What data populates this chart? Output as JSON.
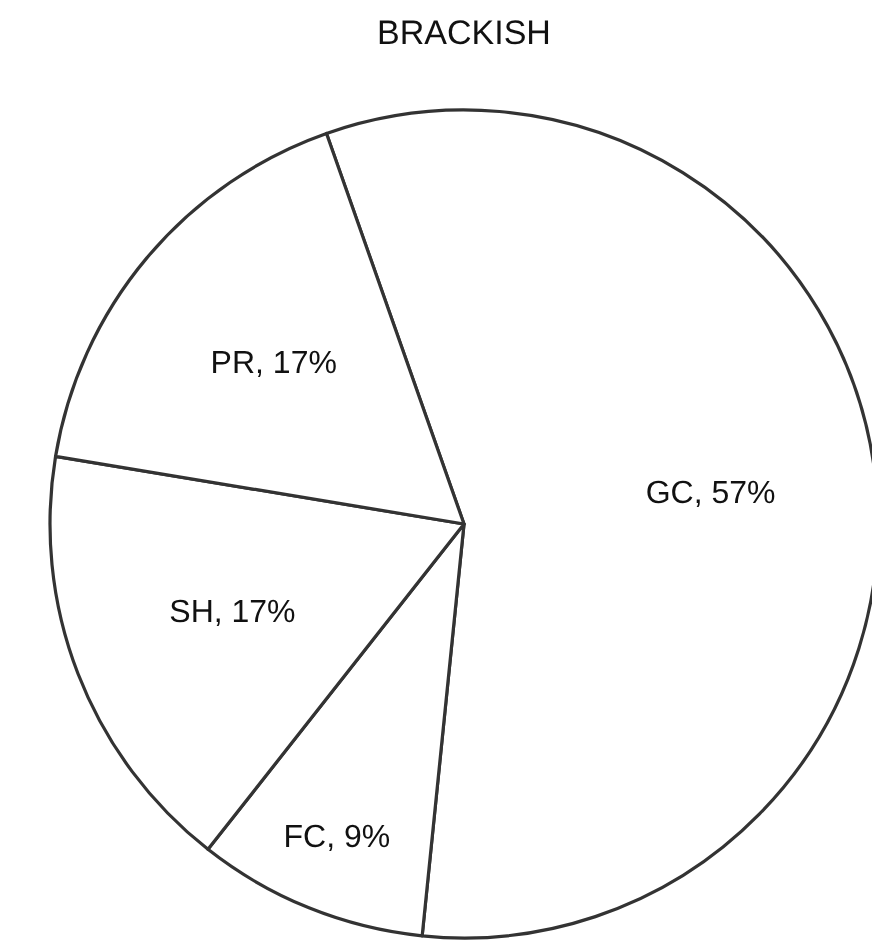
{
  "chart_data": {
    "type": "pie",
    "title": "BRACKISH",
    "categories": [
      "GC",
      "FC",
      "SH",
      "PR"
    ],
    "values": [
      57,
      9,
      17,
      17
    ],
    "value_labels": [
      "57%",
      "9%",
      "17%",
      "17%"
    ],
    "colors": [
      "#ffffff",
      "#ffffff",
      "#ffffff",
      "#ffffff"
    ],
    "legend": false
  }
}
